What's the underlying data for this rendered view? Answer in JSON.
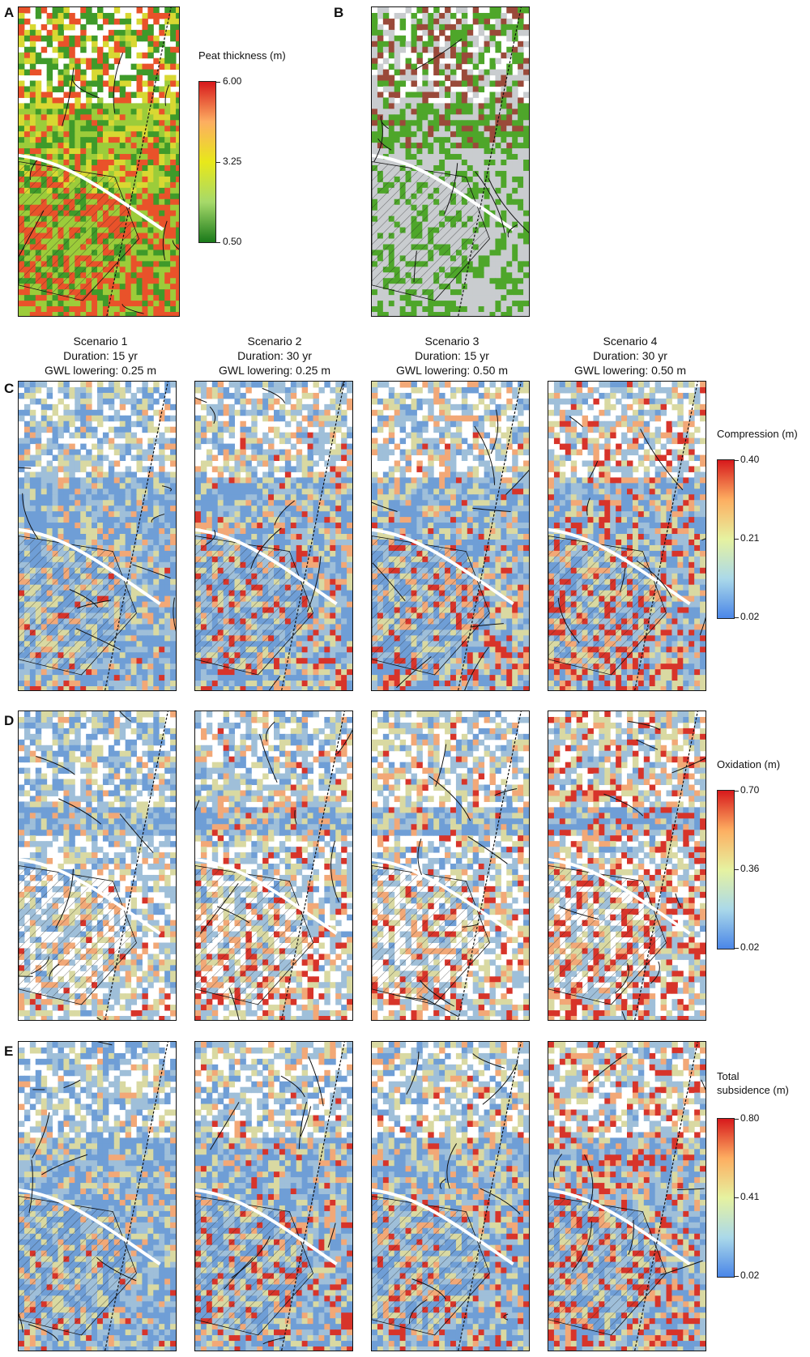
{
  "panels": {
    "A": "A",
    "B": "B",
    "C": "C",
    "D": "D",
    "E": "E"
  },
  "scenarios": [
    {
      "name": "Scenario 1",
      "duration": "Duration: 15 yr",
      "gwl": "GWL lowering: 0.25 m"
    },
    {
      "name": "Scenario 2",
      "duration": "Duration: 30 yr",
      "gwl": "GWL lowering: 0.25 m"
    },
    {
      "name": "Scenario 3",
      "duration": "Duration: 15 yr",
      "gwl": "GWL lowering: 0.50 m"
    },
    {
      "name": "Scenario 4",
      "duration": "Duration: 30 yr",
      "gwl": "GWL lowering: 0.50 m"
    }
  ],
  "legends": {
    "peat": {
      "title": "Peat thickness (m)",
      "max": "6.00",
      "mid": "3.25",
      "min": "0.50",
      "colors": [
        "#d7191c",
        "#fdae61",
        "#e8e81a",
        "#a6d96a",
        "#1a7a1a"
      ]
    },
    "compression": {
      "title": "Compression (m)",
      "max": "0.40",
      "mid": "0.21",
      "min": "0.02",
      "colors": [
        "#d7191c",
        "#fdae61",
        "#e6f2a0",
        "#abd9e9",
        "#4a86e8"
      ]
    },
    "oxidation": {
      "title": "Oxidation (m)",
      "max": "0.70",
      "mid": "0.36",
      "min": "0.02",
      "colors": [
        "#d7191c",
        "#fdae61",
        "#e6f2a0",
        "#abd9e9",
        "#4a86e8"
      ]
    },
    "total": {
      "title_line1": "Total",
      "title_line2": "subsidence (m)",
      "max": "0.80",
      "mid": "0.41",
      "min": "0.02",
      "colors": [
        "#d7191c",
        "#fdae61",
        "#e6f2a0",
        "#abd9e9",
        "#4a86e8"
      ]
    }
  },
  "map_colors": {
    "peat_low": "#3f9a2a",
    "peat_mid": "#9ccc3a",
    "peat_high": "#e9522a",
    "peat_yellow": "#d8d832",
    "landuse_green": "#4ea62a",
    "landuse_brown": "#9a4a3a",
    "landuse_grey": "#c9cccf",
    "blue_low": "#6f9ed6",
    "blue_mid": "#9fbfd9",
    "yellowish": "#d9d9a2",
    "orange": "#f2a877",
    "red": "#d7342a",
    "lines": "#111111"
  }
}
